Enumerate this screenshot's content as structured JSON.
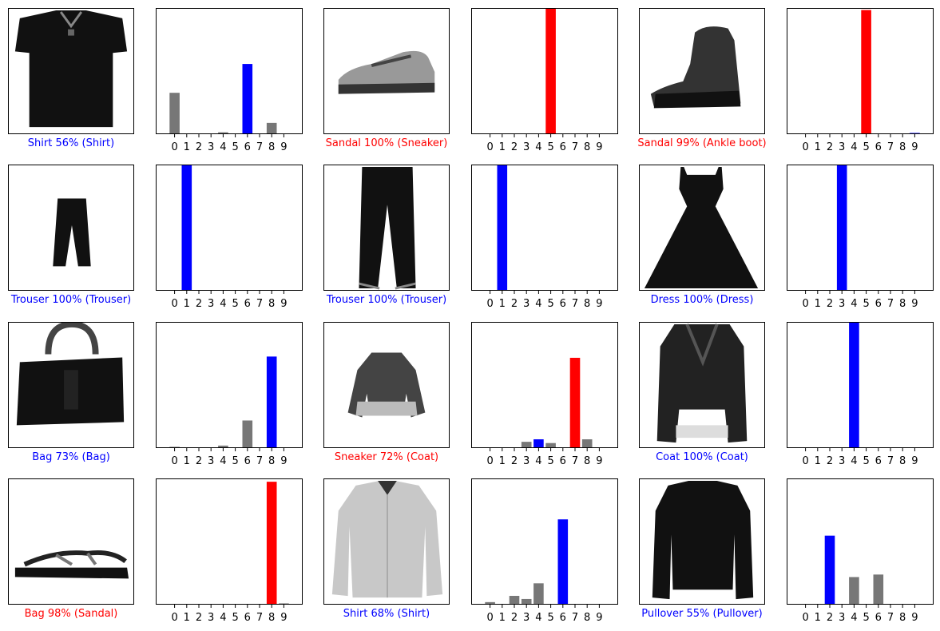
{
  "figure": {
    "layout": "4 rows x 6 columns (image + prediction bar chart pairs)"
  },
  "colors": {
    "correct": "#0000ff",
    "wrong": "#ff0000",
    "other": "#777777",
    "axes": "#000000"
  },
  "chart_data": [
    {
      "type": "bar",
      "categories": [
        "0",
        "1",
        "2",
        "3",
        "4",
        "5",
        "6",
        "7",
        "8",
        "9"
      ],
      "values": [
        0.33,
        0.005,
        0.005,
        0.005,
        0.015,
        0.005,
        0.56,
        0.0,
        0.09,
        0.0
      ],
      "predicted": 6,
      "true": 6,
      "image": "shirt",
      "caption": "Shirt 56% (Shirt)",
      "ylim": [
        0,
        1
      ],
      "xlabel": "",
      "ylabel": ""
    },
    {
      "type": "bar",
      "categories": [
        "0",
        "1",
        "2",
        "3",
        "4",
        "5",
        "6",
        "7",
        "8",
        "9"
      ],
      "values": [
        0,
        0,
        0.005,
        0,
        0,
        1.0,
        0,
        0.005,
        0,
        0
      ],
      "predicted": 5,
      "true": 7,
      "image": "sneaker",
      "caption": "Sandal 100% (Sneaker)",
      "ylim": [
        0,
        1
      ],
      "xlabel": "",
      "ylabel": ""
    },
    {
      "type": "bar",
      "categories": [
        "0",
        "1",
        "2",
        "3",
        "4",
        "5",
        "6",
        "7",
        "8",
        "9"
      ],
      "values": [
        0,
        0,
        0,
        0,
        0,
        0.99,
        0,
        0.005,
        0,
        0.01
      ],
      "predicted": 5,
      "true": 9,
      "image": "boot",
      "caption": "Sandal 99% (Ankle boot)",
      "ylim": [
        0,
        1
      ],
      "xlabel": "",
      "ylabel": ""
    },
    {
      "type": "bar",
      "categories": [
        "0",
        "1",
        "2",
        "3",
        "4",
        "5",
        "6",
        "7",
        "8",
        "9"
      ],
      "values": [
        0,
        1.0,
        0,
        0,
        0,
        0,
        0,
        0,
        0,
        0
      ],
      "predicted": 1,
      "true": 1,
      "image": "trouser-small",
      "caption": "Trouser 100% (Trouser)",
      "ylim": [
        0,
        1
      ],
      "xlabel": "",
      "ylabel": ""
    },
    {
      "type": "bar",
      "categories": [
        "0",
        "1",
        "2",
        "3",
        "4",
        "5",
        "6",
        "7",
        "8",
        "9"
      ],
      "values": [
        0,
        1.0,
        0,
        0,
        0,
        0,
        0,
        0,
        0,
        0
      ],
      "predicted": 1,
      "true": 1,
      "image": "trouser-large",
      "caption": "Trouser 100% (Trouser)",
      "ylim": [
        0,
        1
      ],
      "xlabel": "",
      "ylabel": ""
    },
    {
      "type": "bar",
      "categories": [
        "0",
        "1",
        "2",
        "3",
        "4",
        "5",
        "6",
        "7",
        "8",
        "9"
      ],
      "values": [
        0,
        0,
        0,
        1.0,
        0,
        0,
        0,
        0,
        0,
        0
      ],
      "predicted": 3,
      "true": 3,
      "image": "dress",
      "caption": "Dress 100% (Dress)",
      "ylim": [
        0,
        1
      ],
      "xlabel": "",
      "ylabel": ""
    },
    {
      "type": "bar",
      "categories": [
        "0",
        "1",
        "2",
        "3",
        "4",
        "5",
        "6",
        "7",
        "8",
        "9"
      ],
      "values": [
        0.01,
        0,
        0.005,
        0,
        0.02,
        0,
        0.22,
        0,
        0.73,
        0
      ],
      "predicted": 8,
      "true": 8,
      "image": "bag",
      "caption": "Bag 73% (Bag)",
      "ylim": [
        0,
        1
      ],
      "xlabel": "",
      "ylabel": ""
    },
    {
      "type": "bar",
      "categories": [
        "0",
        "1",
        "2",
        "3",
        "4",
        "5",
        "6",
        "7",
        "8",
        "9"
      ],
      "values": [
        0.005,
        0,
        0.005,
        0.05,
        0.07,
        0.04,
        0.005,
        0.72,
        0.07,
        0
      ],
      "predicted": 7,
      "true": 4,
      "image": "coat-small",
      "caption": "Sneaker 72% (Coat)",
      "ylim": [
        0,
        1
      ],
      "xlabel": "",
      "ylabel": ""
    },
    {
      "type": "bar",
      "categories": [
        "0",
        "1",
        "2",
        "3",
        "4",
        "5",
        "6",
        "7",
        "8",
        "9"
      ],
      "values": [
        0,
        0,
        0,
        0,
        1.0,
        0,
        0,
        0,
        0,
        0
      ],
      "predicted": 4,
      "true": 4,
      "image": "coat",
      "caption": "Coat 100% (Coat)",
      "ylim": [
        0,
        1
      ],
      "xlabel": "",
      "ylabel": ""
    },
    {
      "type": "bar",
      "categories": [
        "0",
        "1",
        "2",
        "3",
        "4",
        "5",
        "6",
        "7",
        "8",
        "9"
      ],
      "values": [
        0,
        0,
        0,
        0,
        0,
        0.005,
        0,
        0,
        0.98,
        0.01
      ],
      "predicted": 8,
      "true": 5,
      "image": "sandal",
      "caption": "Bag 98% (Sandal)",
      "ylim": [
        0,
        1
      ],
      "xlabel": "",
      "ylabel": ""
    },
    {
      "type": "bar",
      "categories": [
        "0",
        "1",
        "2",
        "3",
        "4",
        "5",
        "6",
        "7",
        "8",
        "9"
      ],
      "values": [
        0.02,
        0,
        0.07,
        0.045,
        0.17,
        0,
        0.68,
        0,
        0,
        0
      ],
      "predicted": 6,
      "true": 6,
      "image": "shirt-light",
      "caption": "Shirt 68% (Shirt)",
      "ylim": [
        0,
        1
      ],
      "xlabel": "",
      "ylabel": ""
    },
    {
      "type": "bar",
      "categories": [
        "0",
        "1",
        "2",
        "3",
        "4",
        "5",
        "6",
        "7",
        "8",
        "9"
      ],
      "values": [
        0,
        0,
        0.55,
        0,
        0.22,
        0,
        0.24,
        0,
        0,
        0
      ],
      "predicted": 2,
      "true": 2,
      "image": "pullover",
      "caption": "Pullover 55% (Pullover)",
      "ylim": [
        0,
        1
      ],
      "xlabel": "",
      "ylabel": ""
    }
  ]
}
